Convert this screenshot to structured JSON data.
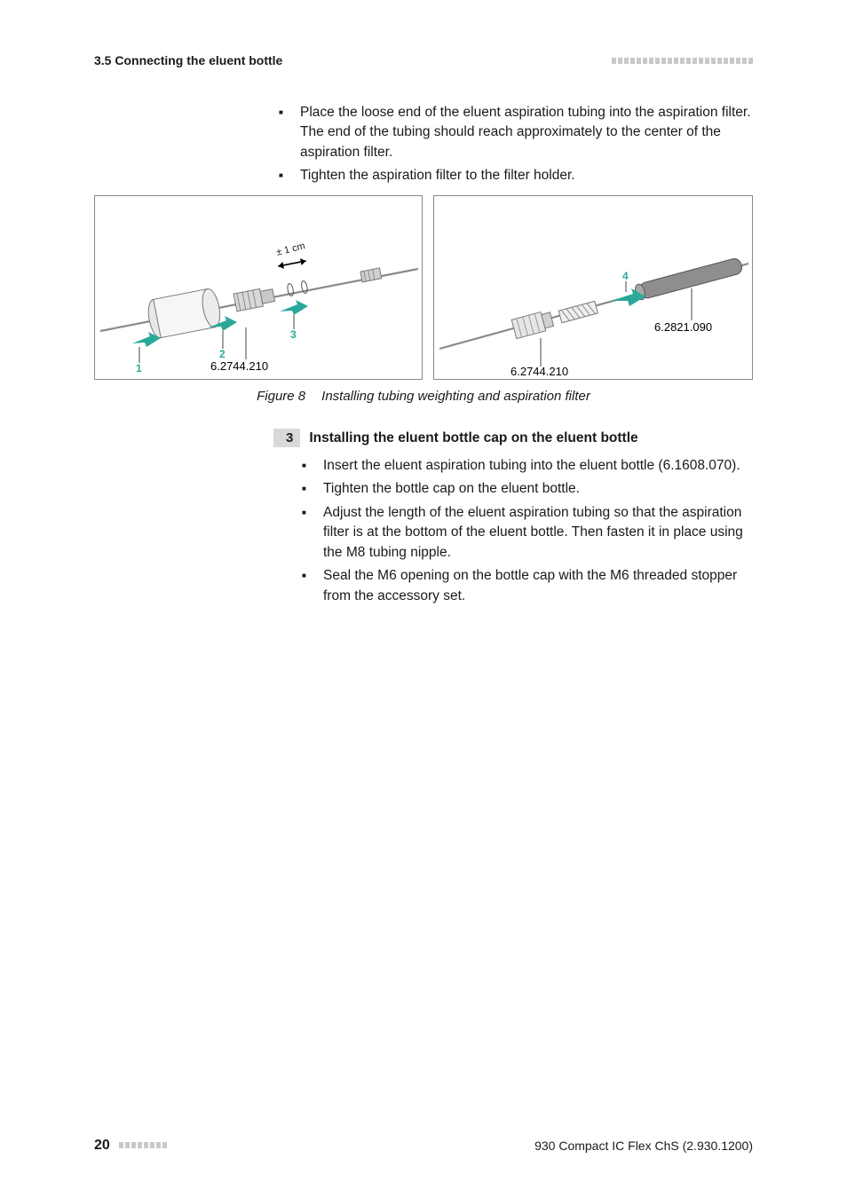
{
  "header": {
    "section": "3.5 Connecting the eluent bottle",
    "bar_count": 23,
    "bar_color": "#c8c8c8"
  },
  "top_bullets": [
    {
      "text": "Place the loose end of the eluent aspiration tubing into the aspiration filter.",
      "sub": "The end of the tubing should reach approximately to the center of the aspiration filter."
    },
    {
      "text": "Tighten the aspiration filter to the filter holder."
    }
  ],
  "figure": {
    "num_label": "Figure 8",
    "cap_text": "Installing tubing weighting and aspiration filter",
    "left": {
      "part_a": "6.2744.210",
      "cm_text": "± 1 cm",
      "markers": {
        "m1": "1",
        "m2": "2",
        "m3": "3"
      },
      "colors": {
        "filter_fill": "#e8e8e8",
        "filter_stroke": "#7a7a7a",
        "tube": "#8a8a8a",
        "arrow": "#2aa89a",
        "marker_txt": "#2aa89a"
      }
    },
    "right": {
      "part_a": "6.2744.210",
      "part_b": "6.2821.090",
      "marker": "4",
      "colors": {
        "weight_fill": "#8e8e8e",
        "weight_stroke": "#555",
        "nut": "#d0d0d0",
        "tube": "#8a8a8a",
        "arrow": "#2aa89a"
      }
    }
  },
  "step": {
    "num": "3",
    "title": "Installing the eluent bottle cap on the eluent bottle",
    "bullets": [
      {
        "text": "Insert the eluent aspiration tubing into the eluent bottle (6.1608.070)."
      },
      {
        "text": "Tighten the bottle cap on the eluent bottle."
      },
      {
        "text": "Adjust the length of the eluent aspiration tubing so that the aspiration filter is at the bottom of the eluent bottle. Then fasten it in place using the M8 tubing nipple."
      },
      {
        "text": "Seal the M6 opening on the bottle cap with the M6 threaded stopper from the accessory set."
      }
    ]
  },
  "footer": {
    "page": "20",
    "bar_count": 8,
    "doc": "930 Compact IC Flex ChS (2.930.1200)"
  }
}
